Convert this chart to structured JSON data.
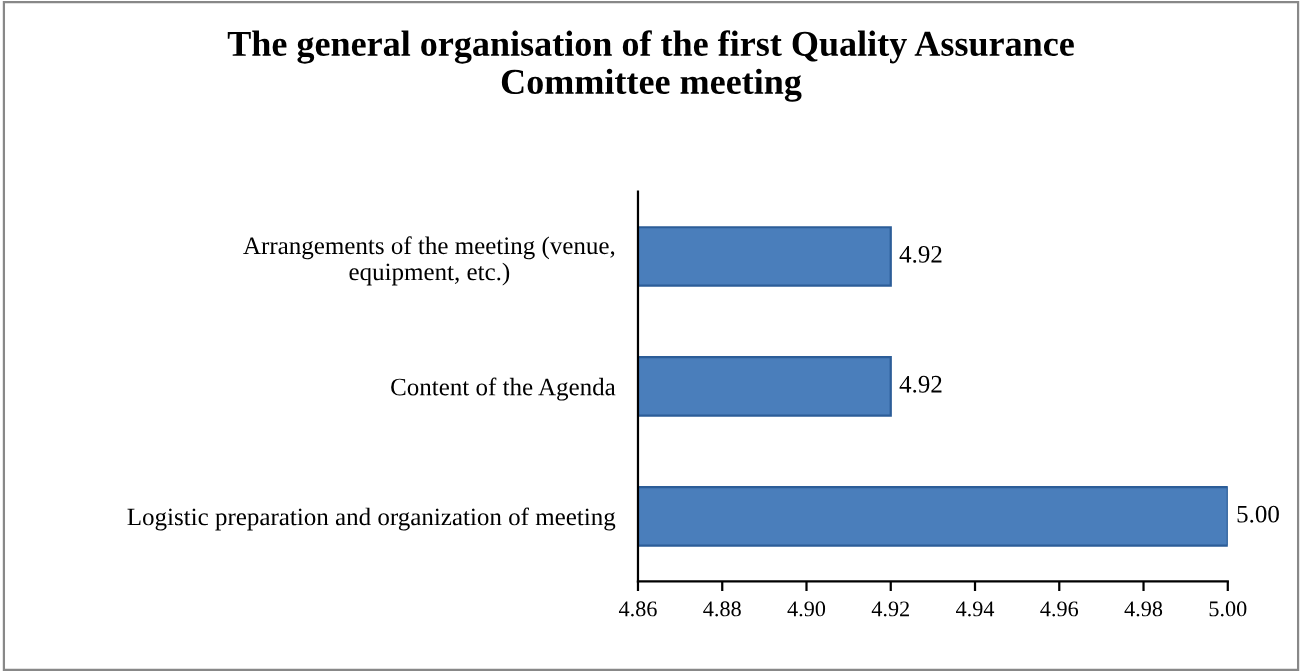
{
  "chart_data": {
    "type": "bar",
    "orientation": "horizontal",
    "title": "The general organisation of the first Quality Assurance\nCommittee meeting",
    "categories": [
      "Arrangements of the meeting (venue,\nequipment, etc.)",
      "Content of the Agenda",
      "Logistic preparation and organization of meeting"
    ],
    "values": [
      4.92,
      4.92,
      5.0
    ],
    "value_labels": [
      "4.92",
      "4.92",
      "5.00"
    ],
    "color": "#4a7ebb",
    "xlim": [
      4.86,
      5.0
    ],
    "xticks": [
      4.86,
      4.88,
      {
        "value": 4.9,
        "label": "4.90"
      },
      4.92,
      4.94,
      4.96,
      4.98,
      {
        "value": 5.0,
        "label": "5.00"
      }
    ],
    "grid": false,
    "legend": false
  }
}
